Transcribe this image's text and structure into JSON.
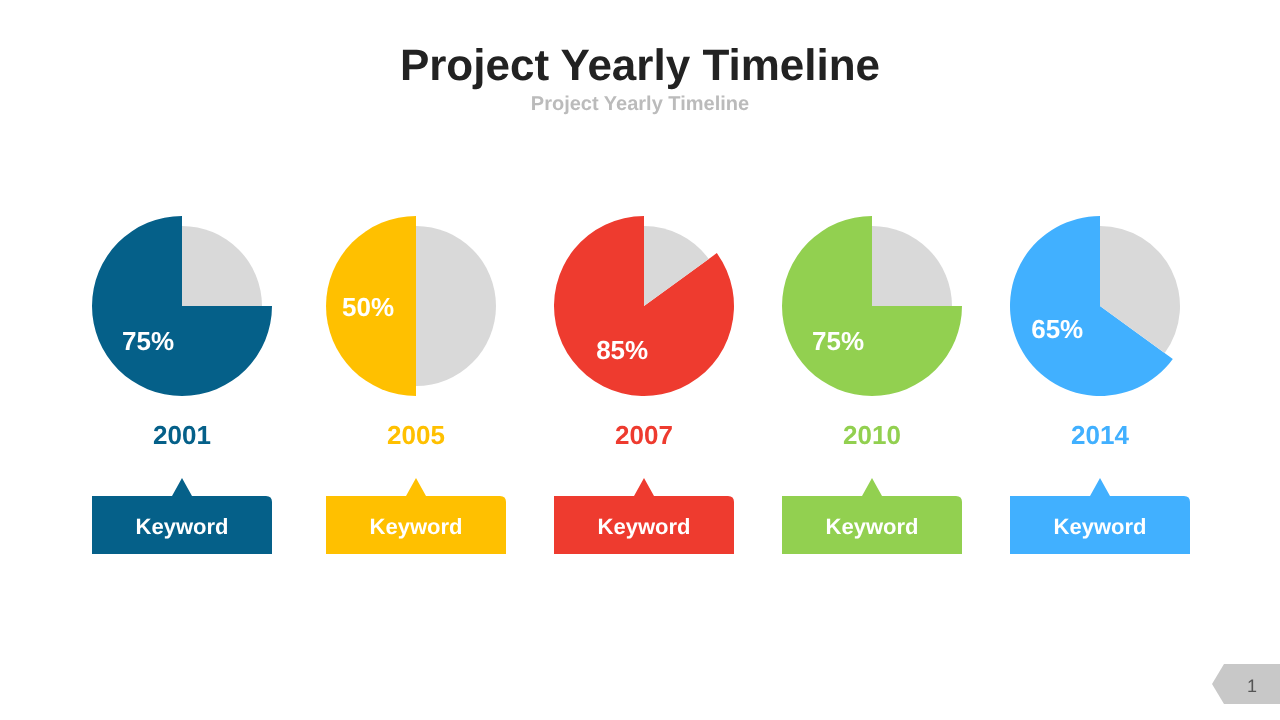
{
  "chart_data": [
    {
      "type": "other",
      "title": "Project Yearly Timeline",
      "subtitle": "Project Yearly Timeline",
      "annotations": [
        "1"
      ]
    },
    {
      "type": "pie",
      "title": "2001",
      "categories": [
        null,
        null
      ],
      "values": [
        75,
        25
      ],
      "colors": [
        "#056089",
        "#d9d9d9"
      ],
      "value_labels": [
        "75%",
        null
      ],
      "annotations": [
        "Keyword"
      ]
    },
    {
      "type": "pie",
      "title": "2005",
      "categories": [
        null,
        null
      ],
      "values": [
        50,
        50
      ],
      "colors": [
        "#ffc000",
        "#d9d9d9"
      ],
      "value_labels": [
        "50%",
        null
      ],
      "annotations": [
        "Keyword"
      ]
    },
    {
      "type": "pie",
      "title": "2007",
      "categories": [
        null,
        null
      ],
      "values": [
        85,
        15
      ],
      "colors": [
        "#ee3b2f",
        "#d9d9d9"
      ],
      "value_labels": [
        "85%",
        null
      ],
      "annotations": [
        "Keyword"
      ]
    },
    {
      "type": "pie",
      "title": "2010",
      "categories": [
        null,
        null
      ],
      "values": [
        75,
        25
      ],
      "colors": [
        "#92d050",
        "#d9d9d9"
      ],
      "value_labels": [
        "75%",
        null
      ],
      "annotations": [
        "Keyword"
      ]
    },
    {
      "type": "pie",
      "title": "2014",
      "categories": [
        null,
        null
      ],
      "values": [
        65,
        35
      ],
      "colors": [
        "#41b0ff",
        "#d9d9d9"
      ],
      "value_labels": [
        "65%",
        null
      ],
      "annotations": [
        "Keyword"
      ]
    }
  ]
}
